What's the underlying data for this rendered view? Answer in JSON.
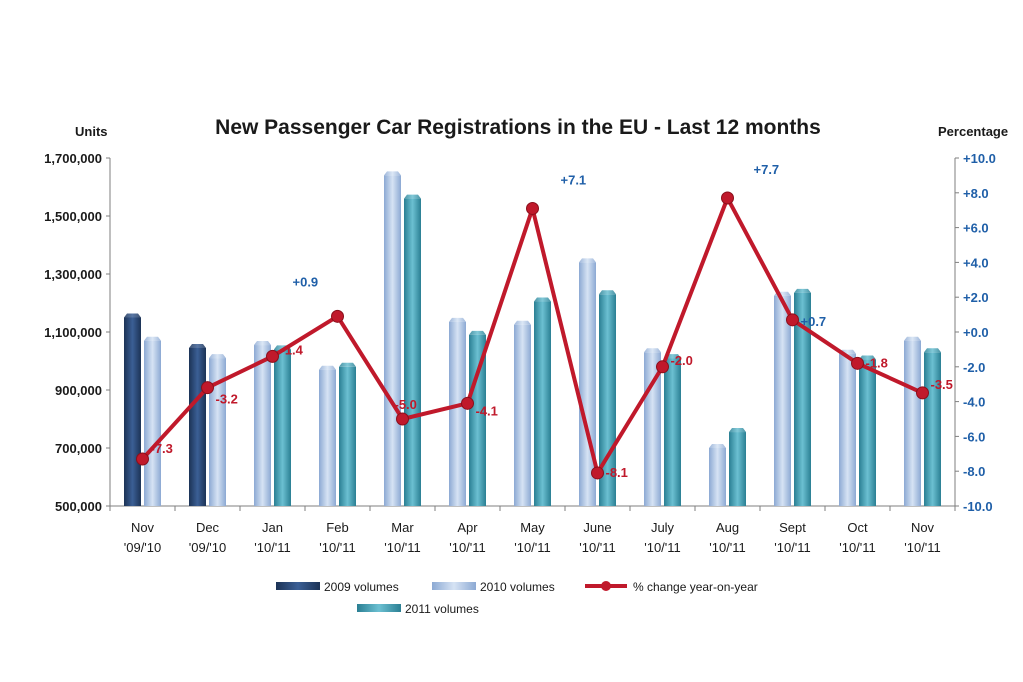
{
  "chart_data": {
    "type": "bar",
    "title": "New Passenger Car Registrations in the EU - Last 12 months",
    "ylabel": "Units",
    "y2label": "Percentage",
    "ylim": [
      500000,
      1700000
    ],
    "y2lim": [
      -10,
      10
    ],
    "yticks": [
      "1,700,000",
      "1,500,000",
      "1,300,000",
      "1,100,000",
      "900,000",
      "700,000",
      "500,000"
    ],
    "y2ticks": [
      "+10.0",
      "+8.0",
      "+6.0",
      "+4.0",
      "+2.0",
      "+0.0",
      "-2.0",
      "-4.0",
      "-6.0",
      "-8.0",
      "-10.0"
    ],
    "categories": [
      [
        "Nov",
        "'09/'10"
      ],
      [
        "Dec",
        "'09/'10"
      ],
      [
        "Jan",
        "'10/'11"
      ],
      [
        "Feb",
        "'10/'11"
      ],
      [
        "Mar",
        "'10/'11"
      ],
      [
        "Apr",
        "'10/'11"
      ],
      [
        "May",
        "'10/'11"
      ],
      [
        "June",
        "'10/'11"
      ],
      [
        "July",
        "'10/'11"
      ],
      [
        "Aug",
        "'10/'11"
      ],
      [
        "Sept",
        "'10/'11"
      ],
      [
        "Oct",
        "'10/'11"
      ],
      [
        "Nov",
        "'10/'11"
      ]
    ],
    "series": [
      {
        "name": "2009 volumes",
        "color": "#2a4a78",
        "values": [
          1150000,
          1045000,
          null,
          null,
          null,
          null,
          null,
          null,
          null,
          null,
          null,
          null,
          null
        ]
      },
      {
        "name": "2010 volumes",
        "color": "#a9c1e2",
        "values": [
          1070000,
          1010000,
          1055000,
          970000,
          1640000,
          1135000,
          1125000,
          1340000,
          1030000,
          700000,
          1225000,
          1025000,
          1070000
        ]
      },
      {
        "name": "2011 volumes",
        "color": "#3f9cb0",
        "values": [
          null,
          null,
          1040000,
          980000,
          1560000,
          1090000,
          1205000,
          1230000,
          1010000,
          755000,
          1235000,
          1005000,
          1030000
        ]
      },
      {
        "name": "% change year-on-year",
        "color": "#c0192b",
        "axis": "right",
        "values": [
          -7.3,
          -3.2,
          -1.4,
          0.9,
          -5.0,
          -4.1,
          7.1,
          -8.1,
          -2.0,
          7.7,
          0.7,
          -1.8,
          -3.5
        ],
        "labels": [
          "-7.3",
          "-3.2",
          "-1.4",
          "+0.9",
          "-5.0",
          "-4.1",
          "+7.1",
          "-8.1",
          "-2.0",
          "+7.7",
          "+0.7",
          "-1.8",
          "-3.5"
        ]
      }
    ],
    "legend": {
      "placement": "bottom"
    }
  }
}
